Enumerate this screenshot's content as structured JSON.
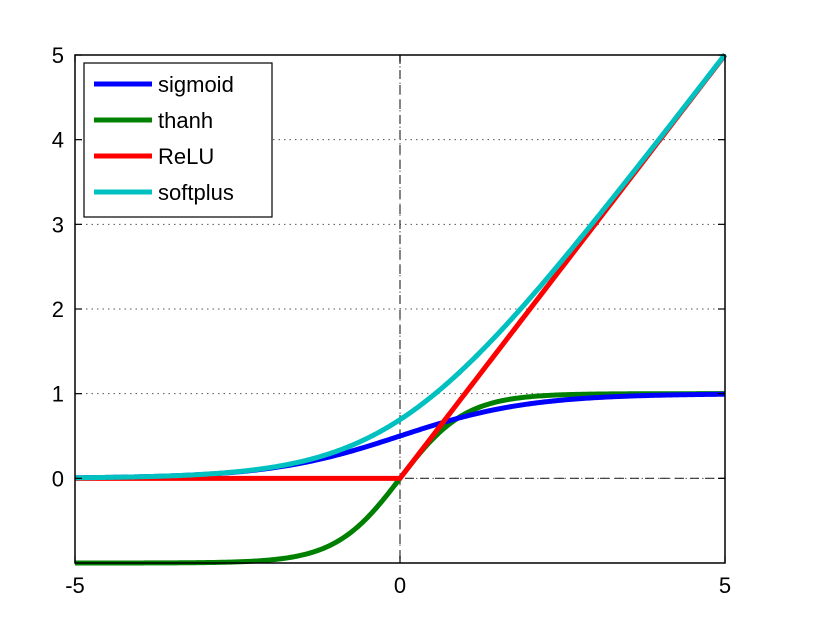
{
  "chart_data": {
    "type": "line",
    "title": "",
    "xlabel": "",
    "ylabel": "",
    "xlim": [
      -5,
      5
    ],
    "ylim": [
      -1,
      5
    ],
    "x_ticks": [
      "-5",
      "0",
      "5"
    ],
    "y_ticks": [
      "0",
      "1",
      "2",
      "3",
      "4",
      "5"
    ],
    "grid": "dotted",
    "legend_position": "top-left",
    "reference_lines": [
      {
        "axis": "y",
        "value": 0,
        "style": "dashed"
      },
      {
        "axis": "x",
        "value": 0,
        "style": "dashed"
      }
    ],
    "series": [
      {
        "name": "sigmoid",
        "color": "#0000ff",
        "x": [
          -5,
          -4,
          -3,
          -2,
          -1,
          0,
          1,
          2,
          3,
          4,
          5
        ],
        "y": [
          0.007,
          0.018,
          0.047,
          0.119,
          0.269,
          0.5,
          0.731,
          0.881,
          0.953,
          0.982,
          0.993
        ]
      },
      {
        "name": "thanh",
        "color": "#008000",
        "x": [
          -5,
          -4,
          -3,
          -2,
          -1,
          0,
          1,
          2,
          3,
          4,
          5
        ],
        "y": [
          -1.0,
          -0.999,
          -0.995,
          -0.964,
          -0.762,
          0.0,
          0.762,
          0.964,
          0.995,
          0.999,
          1.0
        ]
      },
      {
        "name": "ReLU",
        "color": "#ff0000",
        "x": [
          -5,
          0,
          5
        ],
        "y": [
          0,
          0,
          5
        ]
      },
      {
        "name": "softplus",
        "color": "#00c0c0",
        "x": [
          -5,
          -4,
          -3,
          -2,
          -1,
          0,
          1,
          2,
          3,
          4,
          5
        ],
        "y": [
          0.007,
          0.018,
          0.049,
          0.127,
          0.313,
          0.693,
          1.313,
          2.127,
          3.049,
          4.018,
          5.007
        ]
      }
    ]
  }
}
